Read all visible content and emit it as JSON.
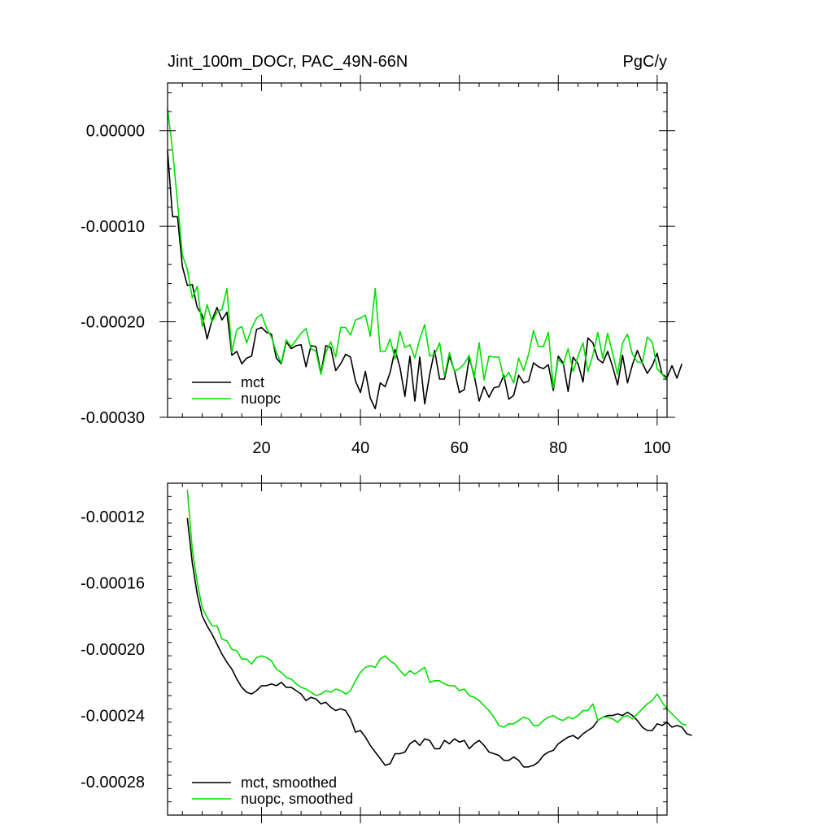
{
  "title_left": "Jint_100m_DOCr, PAC_49N-66N",
  "title_right": "PgC/y",
  "chart_data": [
    {
      "type": "line",
      "title": "Jint_100m_DOCr, PAC_49N-66N",
      "units": "PgC/y",
      "xlim": [
        1,
        102
      ],
      "ylim": [
        -0.0003,
        5e-05
      ],
      "xticks": [
        20,
        40,
        60,
        80,
        100
      ],
      "xtick_labels": [
        "20",
        "40",
        "60",
        "80",
        "100"
      ],
      "yticks": [
        0.0,
        -0.0001,
        -0.0002,
        -0.0003
      ],
      "ytick_labels": [
        "0.00000",
        "-0.00010",
        "-0.00020",
        "-0.00030"
      ],
      "x_start": 1,
      "legend_location": "bottom-left",
      "series": [
        {
          "name": "mct",
          "color": "#000000",
          "values": [
            -2.1e-05,
            -9e-05,
            -9e-05,
            -0.000142,
            -0.000162,
            -0.000161,
            -0.000185,
            -0.000193,
            -0.000218,
            -0.000198,
            -0.000185,
            -0.000198,
            -0.00019,
            -0.000235,
            -0.000231,
            -0.000244,
            -0.000238,
            -0.000236,
            -0.000208,
            -0.000206,
            -0.000211,
            -0.000213,
            -0.000238,
            -0.000244,
            -0.000221,
            -0.000228,
            -0.000225,
            -0.000224,
            -0.000247,
            -0.000225,
            -0.000226,
            -0.000254,
            -0.000225,
            -0.000227,
            -0.000251,
            -0.000244,
            -0.000234,
            -0.000237,
            -0.000262,
            -0.000274,
            -0.000252,
            -0.00028,
            -0.000291,
            -0.000264,
            -0.000268,
            -0.000253,
            -0.000229,
            -0.000248,
            -0.000278,
            -0.000236,
            -0.000283,
            -0.000237,
            -0.000286,
            -0.000255,
            -0.00023,
            -0.00026,
            -0.00026,
            -0.000236,
            -0.000251,
            -0.000274,
            -0.000271,
            -0.000238,
            -0.000256,
            -0.000283,
            -0.000268,
            -0.000279,
            -0.000269,
            -0.000268,
            -0.000256,
            -0.000281,
            -0.000277,
            -0.000256,
            -0.000264,
            -0.000262,
            -0.000243,
            -0.000247,
            -0.000249,
            -0.000245,
            -0.000272,
            -0.000236,
            -0.000243,
            -0.000273,
            -0.000237,
            -0.000244,
            -0.000263,
            -0.000217,
            -0.000222,
            -0.000239,
            -0.000243,
            -0.000231,
            -0.000247,
            -0.000266,
            -0.000235,
            -0.000264,
            -0.000245,
            -0.00023,
            -0.000243,
            -0.000254,
            -0.000246,
            -0.000233,
            -0.000255,
            -0.000258,
            -0.000246,
            -0.000259,
            -0.000244
          ]
        },
        {
          "name": "nuopc",
          "color": "#00e000",
          "values": [
            2.3e-05,
            -2e-05,
            -7.5e-05,
            -0.00013,
            -0.000145,
            -0.000175,
            -0.000163,
            -0.000205,
            -0.000182,
            -0.0002,
            -0.00019,
            -0.000187,
            -0.000165,
            -0.000232,
            -0.000208,
            -0.000205,
            -0.000222,
            -0.000207,
            -0.000196,
            -0.000192,
            -0.000207,
            -0.000216,
            -0.000232,
            -0.000243,
            -0.000219,
            -0.000226,
            -0.000219,
            -0.000212,
            -0.000207,
            -0.000228,
            -0.000231,
            -0.000255,
            -0.000232,
            -0.000221,
            -0.000237,
            -0.000206,
            -0.000206,
            -0.000214,
            -0.000198,
            -0.000196,
            -0.000193,
            -0.000215,
            -0.000165,
            -0.000231,
            -0.000231,
            -0.000218,
            -0.000239,
            -0.00021,
            -0.000227,
            -0.000224,
            -0.000238,
            -0.000218,
            -0.000203,
            -0.000236,
            -0.000234,
            -0.000222,
            -0.000257,
            -0.000232,
            -0.000252,
            -0.000249,
            -0.000244,
            -0.000235,
            -0.000259,
            -0.000222,
            -0.000261,
            -0.000236,
            -0.000237,
            -0.000237,
            -0.00026,
            -0.000253,
            -0.000264,
            -0.000238,
            -0.000251,
            -0.000234,
            -0.000209,
            -0.000226,
            -0.000226,
            -0.000211,
            -0.000269,
            -0.000239,
            -0.000245,
            -0.000228,
            -0.000252,
            -0.000236,
            -0.000222,
            -0.000252,
            -0.000235,
            -0.000211,
            -0.000238,
            -0.000212,
            -0.000233,
            -0.000255,
            -0.000222,
            -0.000213,
            -0.000234,
            -0.000242,
            -0.000243,
            -0.000216,
            -0.000221,
            -0.000249,
            -0.000255,
            -0.000261
          ]
        }
      ]
    },
    {
      "type": "line",
      "title": "",
      "xlim": [
        1,
        102
      ],
      "ylim": [
        -0.0003,
        -0.0001
      ],
      "xticks": [
        20,
        40,
        60,
        80,
        100
      ],
      "xtick_labels": [],
      "yticks": [
        -0.00012,
        -0.00016,
        -0.0002,
        -0.00024,
        -0.00028
      ],
      "ytick_labels": [
        "-0.00012",
        "-0.00016",
        "-0.00020",
        "-0.00024",
        "-0.00028"
      ],
      "x_start": 5,
      "legend_location": "bottom-left",
      "series": [
        {
          "name": "mct, smoothed",
          "color": "#000000",
          "values": [
            -0.000121,
            -0.000148,
            -0.000167,
            -0.00018,
            -0.000186,
            -0.000191,
            -0.000197,
            -0.000203,
            -0.000208,
            -0.000212,
            -0.000218,
            -0.000223,
            -0.000226,
            -0.000227,
            -0.000225,
            -0.000222,
            -0.000222,
            -0.000221,
            -0.000222,
            -0.00022,
            -0.000223,
            -0.000223,
            -0.000225,
            -0.000227,
            -0.000231,
            -0.000229,
            -0.00023,
            -0.000233,
            -0.000232,
            -0.000235,
            -0.000237,
            -0.000236,
            -0.000237,
            -0.000242,
            -0.00025,
            -0.000249,
            -0.000253,
            -0.000258,
            -0.000262,
            -0.000266,
            -0.00027,
            -0.000269,
            -0.000263,
            -0.000263,
            -0.000262,
            -0.000257,
            -0.000255,
            -0.000258,
            -0.000254,
            -0.000255,
            -0.00026,
            -0.00026,
            -0.000255,
            -0.000257,
            -0.000254,
            -0.000256,
            -0.000255,
            -0.00026,
            -0.000257,
            -0.000255,
            -0.000258,
            -0.000262,
            -0.000263,
            -0.000264,
            -0.000267,
            -0.000267,
            -0.000265,
            -0.000267,
            -0.000271,
            -0.000271,
            -0.00027,
            -0.000268,
            -0.000264,
            -0.000262,
            -0.000261,
            -0.000257,
            -0.000255,
            -0.000253,
            -0.000252,
            -0.000254,
            -0.000251,
            -0.000249,
            -0.000247,
            -0.000243,
            -0.000241,
            -0.00024,
            -0.00024,
            -0.000239,
            -0.00024,
            -0.000238,
            -0.00024,
            -0.000243,
            -0.000247,
            -0.000249,
            -0.000249,
            -0.000245,
            -0.000246,
            -0.000244,
            -0.000247,
            -0.000246,
            -0.000247,
            -0.000251,
            -0.000252
          ]
        },
        {
          "name": "nuopc, smoothed",
          "color": "#00e000",
          "values": [
            -0.000104,
            -0.00014,
            -0.00016,
            -0.000175,
            -0.000181,
            -0.000186,
            -0.000186,
            -0.000194,
            -0.000195,
            -0.0002,
            -0.000201,
            -0.000206,
            -0.000206,
            -0.000209,
            -0.000205,
            -0.000204,
            -0.000205,
            -0.000207,
            -0.000212,
            -0.000214,
            -0.000217,
            -0.000218,
            -0.000221,
            -0.000223,
            -0.000224,
            -0.000226,
            -0.000228,
            -0.000227,
            -0.000225,
            -0.000226,
            -0.000224,
            -0.000225,
            -0.000227,
            -0.000225,
            -0.000219,
            -0.000214,
            -0.000211,
            -0.00021,
            -0.000211,
            -0.000206,
            -0.000204,
            -0.000207,
            -0.000209,
            -0.000213,
            -0.000216,
            -0.000213,
            -0.000215,
            -0.000213,
            -0.000211,
            -0.00022,
            -0.000219,
            -0.000219,
            -0.000221,
            -0.000222,
            -0.000222,
            -0.000225,
            -0.000224,
            -0.000228,
            -0.000229,
            -0.000231,
            -0.000234,
            -0.000237,
            -0.000241,
            -0.000246,
            -0.000247,
            -0.000245,
            -0.000245,
            -0.000243,
            -0.000241,
            -0.000242,
            -0.000246,
            -0.000246,
            -0.000243,
            -0.000241,
            -0.00024,
            -0.000242,
            -0.000243,
            -0.000241,
            -0.000242,
            -0.00024,
            -0.000237,
            -0.000237,
            -0.000233,
            -0.000243,
            -0.000241,
            -0.000241,
            -0.000242,
            -0.000244,
            -0.000241,
            -0.00024,
            -0.000242,
            -0.000239,
            -0.000236,
            -0.000233,
            -0.000231,
            -0.000227,
            -0.000232,
            -0.000236,
            -0.000239,
            -0.000242,
            -0.000245,
            -0.000246
          ]
        }
      ]
    }
  ]
}
